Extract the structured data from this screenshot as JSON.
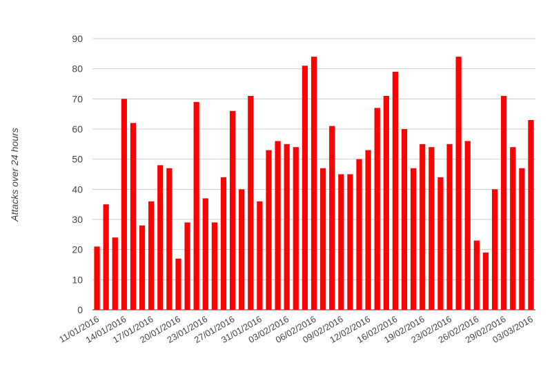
{
  "chart_data": {
    "type": "bar",
    "title": "",
    "xlabel": "",
    "ylabel": "Attacks over 24 hours",
    "ylim": [
      0,
      90
    ],
    "yticks": [
      0,
      10,
      20,
      30,
      40,
      50,
      60,
      70,
      80,
      90
    ],
    "grid": true,
    "legend": "none",
    "bar_color": "#ff0000",
    "values": [
      21,
      35,
      24,
      70,
      62,
      28,
      36,
      48,
      47,
      17,
      29,
      69,
      37,
      29,
      44,
      66,
      40,
      71,
      36,
      53,
      56,
      55,
      54,
      81,
      84,
      47,
      61,
      45,
      45,
      50,
      53,
      67,
      71,
      79,
      60,
      47,
      55,
      54,
      44,
      55,
      84,
      56,
      23,
      19,
      40,
      71,
      54,
      47,
      63
    ],
    "x_tick_labels": [
      {
        "index": 0,
        "label": "11/01/2016"
      },
      {
        "index": 3,
        "label": "14/01/2016"
      },
      {
        "index": 6,
        "label": "17/01/2016"
      },
      {
        "index": 9,
        "label": "20/01/2016"
      },
      {
        "index": 12,
        "label": "23/01/2016"
      },
      {
        "index": 15,
        "label": "27/01/2016"
      },
      {
        "index": 18,
        "label": "31/01/2016"
      },
      {
        "index": 21,
        "label": "03/02/2016"
      },
      {
        "index": 24,
        "label": "06/02/2016"
      },
      {
        "index": 27,
        "label": "09/02/2016"
      },
      {
        "index": 30,
        "label": "12/02/2016"
      },
      {
        "index": 33,
        "label": "16/02/2016"
      },
      {
        "index": 36,
        "label": "19/02/2016"
      },
      {
        "index": 39,
        "label": "23/02/2016"
      },
      {
        "index": 42,
        "label": "26/02/2016"
      },
      {
        "index": 45,
        "label": "29/02/2016"
      },
      {
        "index": 48,
        "label": "03/03/2016"
      }
    ]
  }
}
